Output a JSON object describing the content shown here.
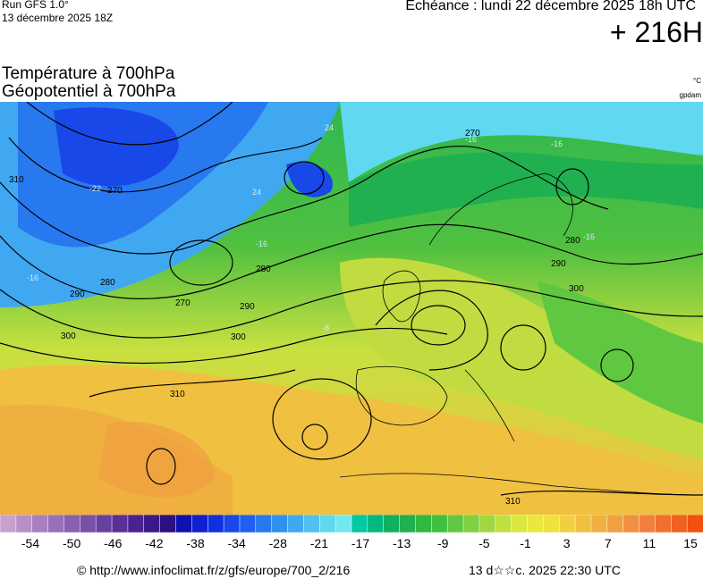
{
  "header": {
    "run": "Run GFS 1.0°",
    "run_date": "13 décembre 2025 18Z",
    "echeance": "Echéance : lundi 22 décembre 2025 18h UTC",
    "lead": "+ 216H",
    "title_line1": "Température à 700hPa",
    "title_line2": "Géopotentiel à 700hPa",
    "unit_temp": "°C",
    "unit_geo": "gpdam"
  },
  "map": {
    "contour_labels": [
      "270",
      "280",
      "290",
      "300",
      "310",
      "270",
      "280",
      "290",
      "300",
      "310",
      "280",
      "270",
      "290",
      "300",
      "310"
    ],
    "isotherm_labels": [
      "24",
      "24",
      "-16",
      "-16",
      "-16",
      "-22",
      "-16",
      "-8",
      "-16"
    ]
  },
  "legend": {
    "ticks": [
      "-54",
      "-50",
      "-46",
      "-42",
      "-38",
      "-34",
      "-28",
      "-21",
      "-17",
      "-13",
      "-9",
      "-5",
      "-1",
      "3",
      "7",
      "11",
      "15"
    ],
    "colors": [
      "#c8a0d0",
      "#b890c8",
      "#a880c0",
      "#9870b8",
      "#8860b0",
      "#7850a8",
      "#6840a0",
      "#5a3098",
      "#4a2290",
      "#3a1888",
      "#2a1080",
      "#1010b0",
      "#1020d0",
      "#1030e0",
      "#1848e8",
      "#2060f0",
      "#2878f0",
      "#3090f0",
      "#40a8f0",
      "#50c0f0",
      "#60d8f0",
      "#70e8f0",
      "#00c8a0",
      "#00b880",
      "#10b060",
      "#20b050",
      "#30b840",
      "#40c040",
      "#60c840",
      "#80d040",
      "#a0d840",
      "#c0e040",
      "#d8e840",
      "#e8e840",
      "#f0e040",
      "#f0d040",
      "#f0c040",
      "#f0b040",
      "#f0a040",
      "#f09040",
      "#f08040",
      "#f07030",
      "#f06020",
      "#f05010"
    ]
  },
  "footer": {
    "source": "© http://www.infoclimat.fr/z/gfs/europe/700_2/216",
    "generated": "13 d☆☆c. 2025 22:30 UTC"
  }
}
